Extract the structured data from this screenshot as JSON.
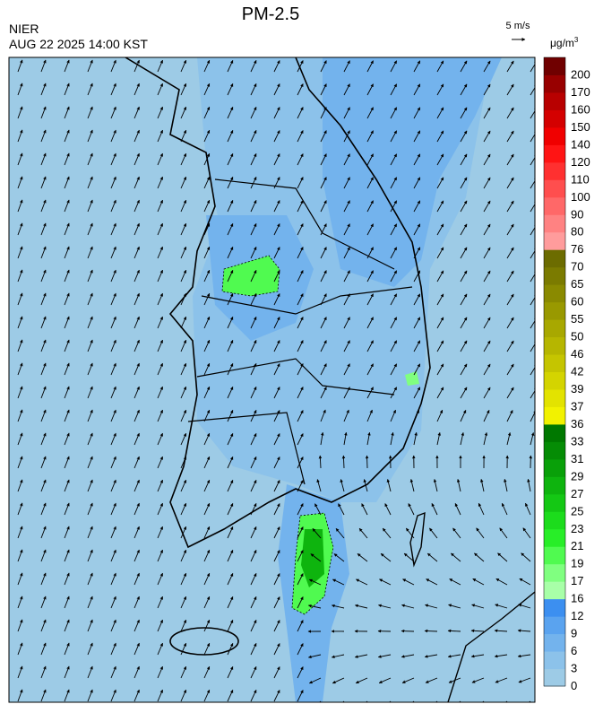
{
  "header": {
    "title": "PM-2.5",
    "agency": "NIER",
    "timestamp": "AUG 22 2025 14:00 KST"
  },
  "wind_scale": {
    "label": "5 m/s"
  },
  "legend": {
    "unit": "μg/m",
    "unit_power": "3",
    "bins": [
      {
        "label": 0,
        "color": "#9dcbe6"
      },
      {
        "label": 3,
        "color": "#8cc2ea"
      },
      {
        "label": 6,
        "color": "#73b3ed"
      },
      {
        "label": 9,
        "color": "#5aa3ef"
      },
      {
        "label": 12,
        "color": "#3c8ff0"
      },
      {
        "label": 16,
        "color": "#a8ffa8"
      },
      {
        "label": 17,
        "color": "#80ff80"
      },
      {
        "label": 19,
        "color": "#50fa50"
      },
      {
        "label": 21,
        "color": "#28ee28"
      },
      {
        "label": 23,
        "color": "#1cdc1c"
      },
      {
        "label": 25,
        "color": "#14c814"
      },
      {
        "label": 27,
        "color": "#0eb40e"
      },
      {
        "label": 29,
        "color": "#09a009"
      },
      {
        "label": 31,
        "color": "#058c05"
      },
      {
        "label": 33,
        "color": "#007800"
      },
      {
        "label": 36,
        "color": "#f2f200"
      },
      {
        "label": 37,
        "color": "#e3e300"
      },
      {
        "label": 39,
        "color": "#d4d400"
      },
      {
        "label": 42,
        "color": "#c5c500"
      },
      {
        "label": 46,
        "color": "#b6b600"
      },
      {
        "label": 50,
        "color": "#a8a800"
      },
      {
        "label": 55,
        "color": "#999900"
      },
      {
        "label": 60,
        "color": "#8a8a00"
      },
      {
        "label": 65,
        "color": "#7b7b00"
      },
      {
        "label": 70,
        "color": "#6c6c00"
      },
      {
        "label": 76,
        "color": "#ff9c9c"
      },
      {
        "label": 80,
        "color": "#ff8282"
      },
      {
        "label": 90,
        "color": "#ff6868"
      },
      {
        "label": 100,
        "color": "#ff4e4e"
      },
      {
        "label": 110,
        "color": "#ff3030"
      },
      {
        "label": 120,
        "color": "#ff1414"
      },
      {
        "label": 140,
        "color": "#f00000"
      },
      {
        "label": 150,
        "color": "#d40000"
      },
      {
        "label": 160,
        "color": "#b80000"
      },
      {
        "label": 170,
        "color": "#980000"
      },
      {
        "label": 200,
        "color": "#700000"
      }
    ]
  }
}
